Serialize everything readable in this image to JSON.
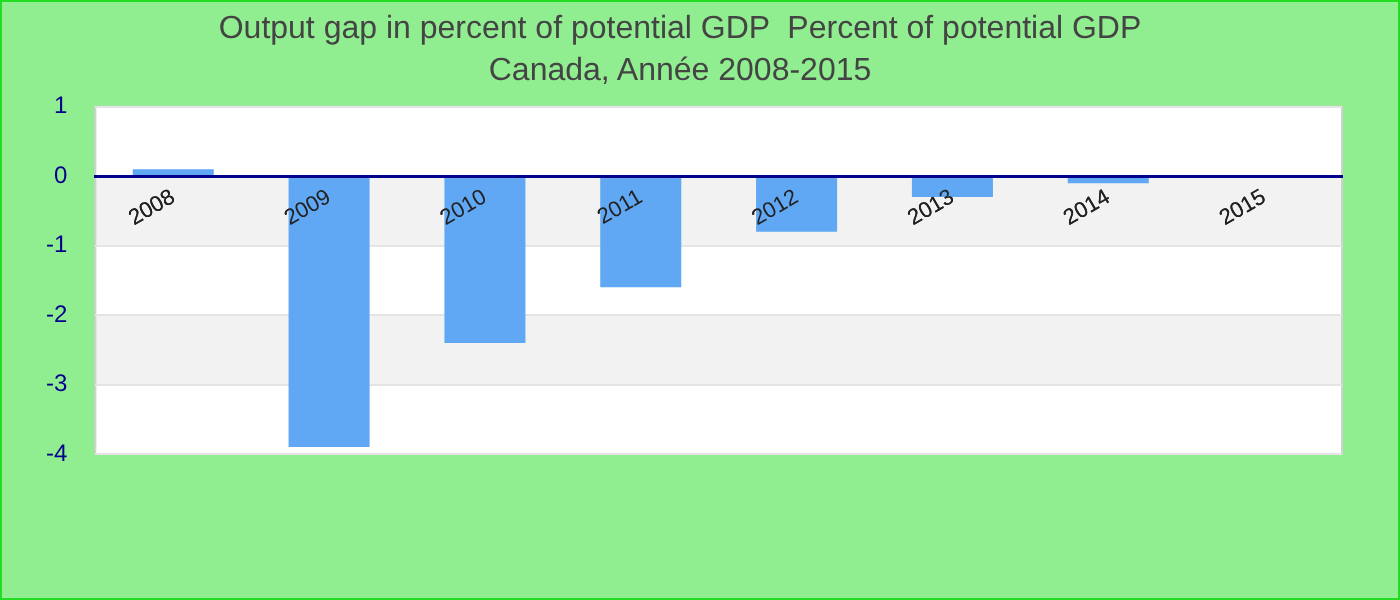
{
  "chart_data": {
    "type": "bar",
    "title": "Output gap in percent of potential GDP  Percent of potential GDP",
    "subtitle": "Canada, Année 2008-2015",
    "categories": [
      "2008",
      "2009",
      "2010",
      "2011",
      "2012",
      "2013",
      "2014",
      "2015"
    ],
    "values": [
      0.1,
      -3.9,
      -2.4,
      -1.6,
      -0.8,
      -0.3,
      -0.1,
      0
    ],
    "color": "#60a8f4",
    "ylim": [
      -4,
      1
    ],
    "yticks": [
      -4,
      -3,
      -2,
      -1,
      0,
      1
    ],
    "grid": "y"
  }
}
